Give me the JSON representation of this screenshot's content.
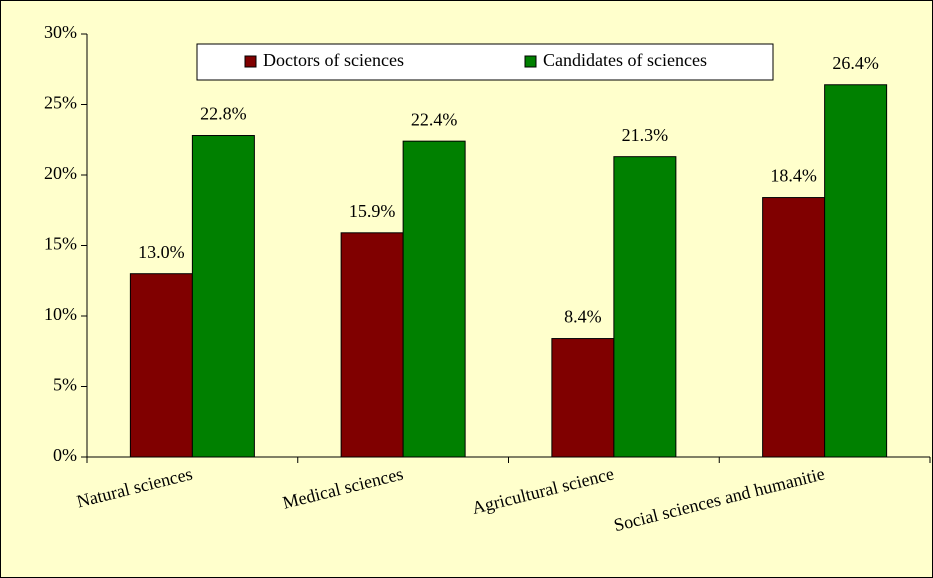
{
  "chart_data": {
    "type": "bar",
    "categories": [
      "Natural sciences",
      "Medical sciences",
      "Agricultural science",
      "Social sciences and humanitie"
    ],
    "series": [
      {
        "name": "Doctors of sciences",
        "color": "#800000",
        "values": [
          13.0,
          15.9,
          8.4,
          18.4
        ],
        "value_labels": [
          "13.0%",
          "15.9%",
          "8.4%",
          "18.4%"
        ]
      },
      {
        "name": "Candidates of sciences",
        "color": "#008000",
        "values": [
          22.8,
          22.4,
          21.3,
          26.4
        ],
        "value_labels": [
          "22.8%",
          "22.4%",
          "21.3%",
          "26.4%"
        ]
      }
    ],
    "ylim": [
      0,
      30
    ],
    "yticks": [
      {
        "value": 0,
        "label": "0%"
      },
      {
        "value": 5,
        "label": "5%"
      },
      {
        "value": 10,
        "label": "10%"
      },
      {
        "value": 15,
        "label": "15%"
      },
      {
        "value": 20,
        "label": "20%"
      },
      {
        "value": 25,
        "label": "25%"
      },
      {
        "value": 30,
        "label": "30%"
      }
    ],
    "grid": false
  }
}
